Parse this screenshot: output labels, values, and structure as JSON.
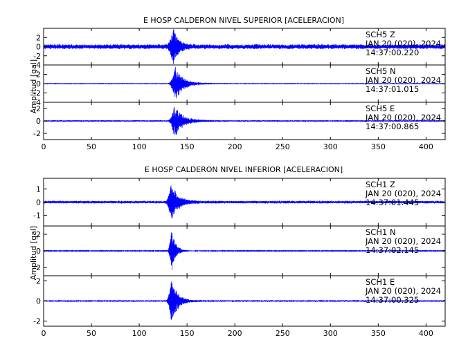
{
  "chart_data": [
    {
      "type": "line",
      "title": "E HOSP CALDERON NIVEL SUPERIOR [ACELERACION]",
      "ylabel": "Amplitud [gal]",
      "xlim": [
        0,
        420
      ],
      "x_ticks": [
        0,
        50,
        100,
        150,
        200,
        250,
        300,
        350,
        400
      ],
      "color": "#0000ff",
      "panels": [
        {
          "station": "SCH5",
          "component": "Z",
          "date": "JAN 20 (020), 2024",
          "time": "14:37:00.220",
          "ylim": [
            -4,
            4
          ],
          "y_ticks": [
            -4,
            -2,
            0,
            2
          ],
          "noise_amplitude": 0.6,
          "event_start": 128,
          "event_peak_time": 136,
          "event_peak": 3.8,
          "decay_seconds": 10
        },
        {
          "station": "SCH5",
          "component": "N",
          "date": "JAN 20 (020), 2024",
          "time": "14:37:01.015",
          "ylim": [
            -4,
            4
          ],
          "y_ticks": [
            -4,
            -2,
            0,
            2
          ],
          "noise_amplitude": 0.15,
          "event_start": 130,
          "event_peak_time": 138,
          "event_peak": 3.6,
          "decay_seconds": 15
        },
        {
          "station": "SCH5",
          "component": "E",
          "date": "JAN 20 (020), 2024",
          "time": "14:37:00.865",
          "ylim": [
            -3,
            3
          ],
          "y_ticks": [
            -2,
            0,
            2
          ],
          "noise_amplitude": 0.15,
          "event_start": 130,
          "event_peak_time": 137,
          "event_peak": 2.7,
          "decay_seconds": 16
        }
      ]
    },
    {
      "type": "line",
      "title": "E HOSP CALDERON NIVEL INFERIOR [ACELERACION]",
      "ylabel": "Amplitud [gal]",
      "xlim": [
        0,
        420
      ],
      "x_ticks": [
        0,
        50,
        100,
        150,
        200,
        250,
        300,
        350,
        400
      ],
      "color": "#0000ff",
      "panels": [
        {
          "station": "SCH1",
          "component": "Z",
          "date": "JAN 20 (020), 2024",
          "time": "14:37:01.445",
          "ylim": [
            -1.8,
            1.8
          ],
          "y_ticks": [
            -1,
            0,
            1
          ],
          "noise_amplitude": 0.12,
          "event_start": 127,
          "event_peak_time": 134,
          "event_peak": 1.5,
          "decay_seconds": 12
        },
        {
          "station": "SCH1",
          "component": "N",
          "date": "JAN 20 (020), 2024",
          "time": "14:37:02.145",
          "ylim": [
            -3,
            3
          ],
          "y_ticks": [
            -2,
            0,
            2
          ],
          "noise_amplitude": 0.04,
          "event_start": 129,
          "event_peak_time": 134,
          "event_peak": 2.6,
          "decay_seconds": 8
        },
        {
          "station": "SCH1",
          "component": "E",
          "date": "JAN 20 (020), 2024",
          "time": "14:37:00.325",
          "ylim": [
            -2.5,
            2.5
          ],
          "y_ticks": [
            -2,
            0,
            2
          ],
          "noise_amplitude": 0.1,
          "event_start": 128,
          "event_peak_time": 134,
          "event_peak": 2.4,
          "decay_seconds": 11
        }
      ]
    }
  ]
}
